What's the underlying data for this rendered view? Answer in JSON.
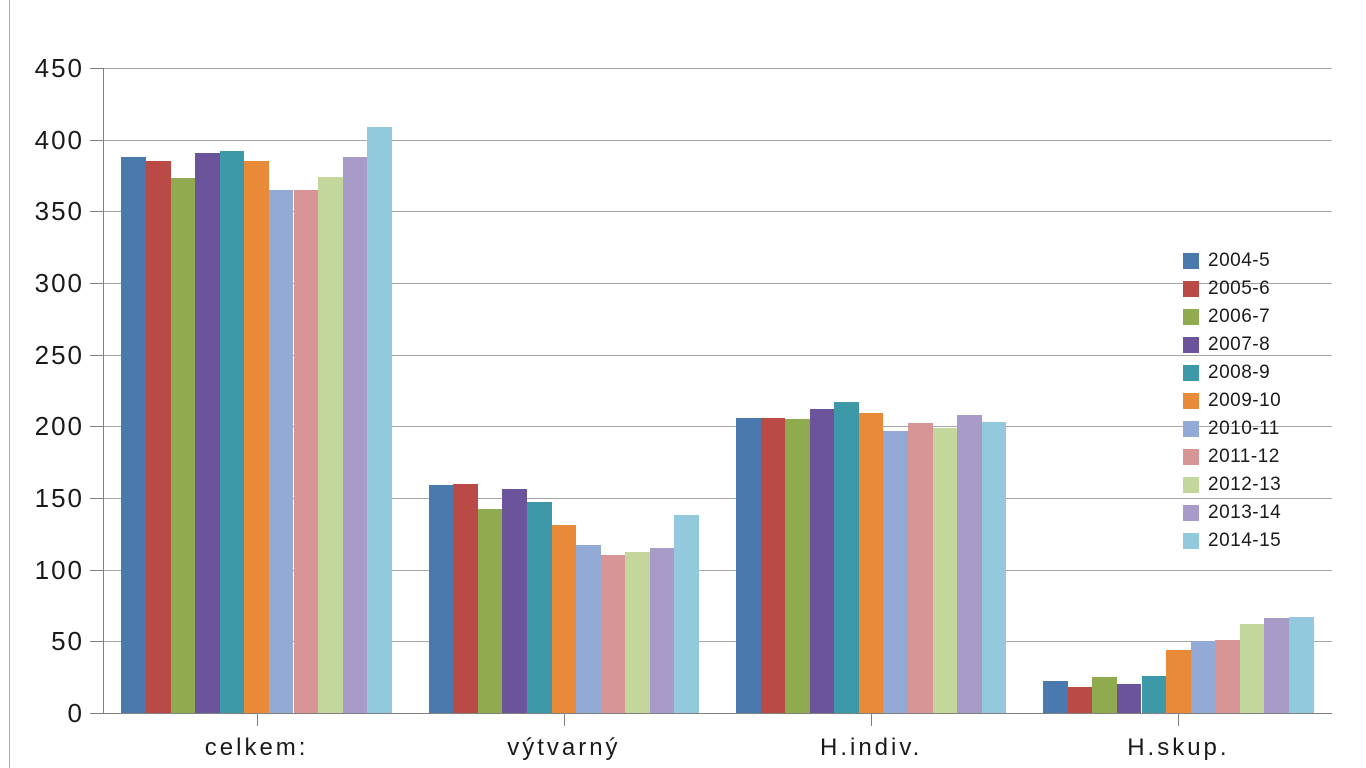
{
  "page": {
    "background_color": "#FFFFFF",
    "left_border_color": "#ABABAB"
  },
  "chart_data": {
    "type": "bar",
    "title": "",
    "xlabel": "",
    "ylabel": "",
    "categories": [
      "celkem:",
      "výtvarný",
      "H.indiv.",
      "H.skup."
    ],
    "series": [
      {
        "name": "2004-5",
        "color": "#4A79AE",
        "values": [
          388,
          159,
          206,
          22
        ]
      },
      {
        "name": "2005-6",
        "color": "#B94A45",
        "values": [
          385,
          160,
          206,
          18
        ]
      },
      {
        "name": "2006-7",
        "color": "#8FAA4F",
        "values": [
          373,
          142,
          205,
          25
        ]
      },
      {
        "name": "2007-8",
        "color": "#6B549C",
        "values": [
          391,
          156,
          212,
          20
        ]
      },
      {
        "name": "2008-9",
        "color": "#3D98A8",
        "values": [
          392,
          147,
          217,
          26
        ]
      },
      {
        "name": "2009-10",
        "color": "#E98A38",
        "values": [
          385,
          131,
          209,
          44
        ]
      },
      {
        "name": "2010-11",
        "color": "#93A9D6",
        "values": [
          365,
          117,
          197,
          50
        ]
      },
      {
        "name": "2011-12",
        "color": "#D79695",
        "values": [
          365,
          110,
          202,
          51
        ]
      },
      {
        "name": "2012-13",
        "color": "#C3D69B",
        "values": [
          374,
          112,
          199,
          62
        ]
      },
      {
        "name": "2013-14",
        "color": "#A89BC8",
        "values": [
          388,
          115,
          208,
          66
        ]
      },
      {
        "name": "2014-15",
        "color": "#93C9DC",
        "values": [
          409,
          138,
          203,
          67
        ]
      }
    ],
    "ylim": [
      0,
      450
    ],
    "ytick_step": 50,
    "ytick_labels": [
      "0",
      "50",
      "100",
      "150",
      "200",
      "250",
      "300",
      "350",
      "400",
      "450"
    ],
    "grid": true,
    "legend_position": "right",
    "legend_entries": [
      "2004-5",
      "2005-6",
      "2006-7",
      "2007-8",
      "2008-9",
      "2009-10",
      "2010-11",
      "2011-12",
      "2012-13",
      "2013-14",
      "2014-15"
    ],
    "axis_color": "#808080",
    "gridline_color": "#A6A6A6",
    "text_color": "#1A1A1A"
  }
}
